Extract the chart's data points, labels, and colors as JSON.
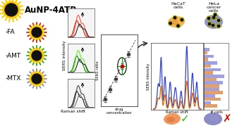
{
  "title_text": "AuNP-4ATP-",
  "labels": [
    "-FA",
    "-AMT",
    "-MTX"
  ],
  "spike_colors": [
    "#cc2200",
    "#22aa00",
    "#888899"
  ],
  "ring_color": "#ffcc00",
  "core_color": "#111111",
  "peak_colors_row0": [
    "#cc1100",
    "#ff4422",
    "#111111"
  ],
  "peak_colors_row1": [
    "#007700",
    "#55ee00",
    "#111111"
  ],
  "peak_colors_row2": [
    "#111111",
    "#333333",
    "#666666"
  ],
  "sers_line_blue": "#3344cc",
  "sers_line_orange": "#dd6600",
  "hist_blue": "#8888dd",
  "hist_orange": "#dd8844",
  "bg_color": "#ffffff",
  "HaCaT_color_top": "#ffaa44",
  "HeLa_color_top": "#8888cc",
  "HaCaT_color_bot": "#ffaa44",
  "HeLa_color_bot": "#8888bb",
  "scatter_pt_color": "#333333",
  "scatter_highlight_color": "#cc0000",
  "crosshair_color": "#00aa00",
  "arrow_color": "#333333",
  "check_color": "#22bb00",
  "cross_color": "#cc1100",
  "small_plot_bg": "#f5f5f5"
}
